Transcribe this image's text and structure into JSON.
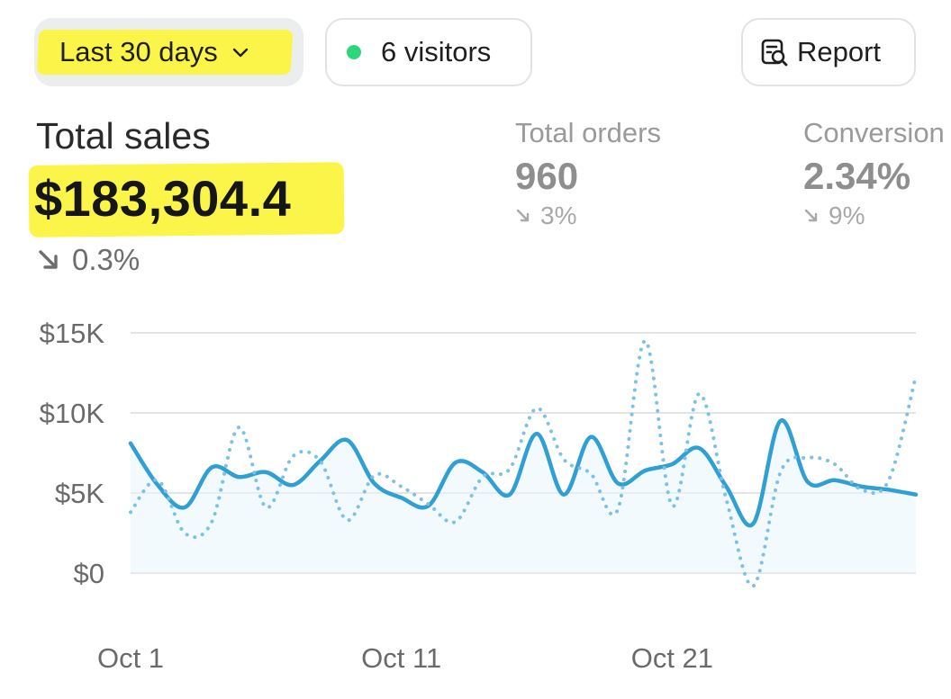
{
  "toolbar": {
    "range_label": "Last 30 days",
    "visitors_label": "6 visitors",
    "report_label": "Report"
  },
  "summary": {
    "total_sales_label": "Total sales",
    "total_sales_value": "$183,304.4",
    "total_sales_change": "0.3%",
    "orders_label": "Total orders",
    "orders_value": "960",
    "orders_change": "3%",
    "conversion_label": "Conversion",
    "conversion_value": "2.34%",
    "conversion_change": "9%"
  },
  "colors": {
    "highlight": "#fbf54a",
    "accent_line": "#2f9fd4",
    "status_dot": "#2dd67a"
  },
  "icons": [
    "chevron-down-icon",
    "status-dot-icon",
    "report-icon",
    "trend-down-icon"
  ],
  "chart_data": {
    "type": "line",
    "x": [
      1,
      2,
      3,
      4,
      5,
      6,
      7,
      8,
      9,
      10,
      11,
      12,
      13,
      14,
      15,
      16,
      17,
      18,
      19,
      20,
      21,
      22,
      23,
      24,
      25,
      26,
      27,
      28,
      29,
      30
    ],
    "x_ticks": [
      1,
      11,
      21
    ],
    "x_tick_labels": [
      "Oct 1",
      "Oct 11",
      "Oct 21"
    ],
    "y_ticks": [
      0,
      5000,
      10000,
      15000
    ],
    "y_tick_labels": [
      "$0",
      "$5K",
      "$10K",
      "$15K"
    ],
    "ylim": [
      0,
      15000
    ],
    "series": [
      {
        "style": "solid",
        "values": [
          8100,
          5500,
          4100,
          6600,
          6000,
          6300,
          5500,
          7000,
          8300,
          5600,
          4700,
          4200,
          6900,
          6300,
          4900,
          8700,
          4900,
          8500,
          5600,
          6400,
          6800,
          7800,
          5400,
          3100,
          9500,
          5700,
          5800,
          5400,
          5200,
          4900
        ]
      },
      {
        "style": "dotted",
        "values": [
          3800,
          5800,
          2500,
          3200,
          9100,
          4100,
          7300,
          7000,
          3300,
          6100,
          5400,
          4300,
          3200,
          6000,
          6500,
          10300,
          7100,
          6200,
          4000,
          14500,
          4200,
          11200,
          4600,
          -800,
          6300,
          7200,
          6800,
          5200,
          5800,
          12300
        ]
      }
    ]
  }
}
